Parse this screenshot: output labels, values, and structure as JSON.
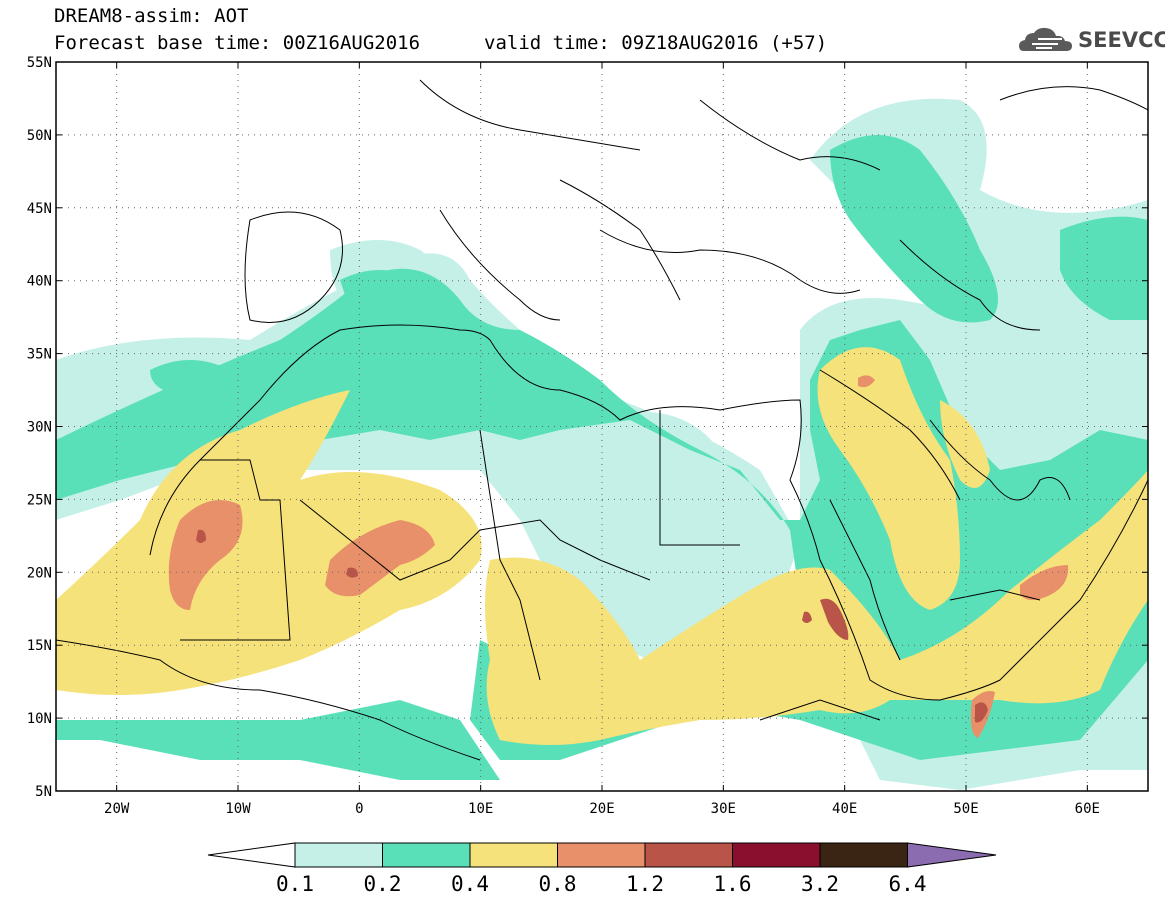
{
  "header": {
    "title_line1": "DREAM8-assim: AOT",
    "title_line2": "Forecast base time: 00Z16AUG2016",
    "valid_time": "valid time: 09Z18AUG2016 (+57)",
    "logo_text": "SEEVCCC"
  },
  "map": {
    "lon_ticks": [
      {
        "lon": -20,
        "label": "20W"
      },
      {
        "lon": -10,
        "label": "10W"
      },
      {
        "lon": 0,
        "label": "0"
      },
      {
        "lon": 10,
        "label": "10E"
      },
      {
        "lon": 20,
        "label": "20E"
      },
      {
        "lon": 30,
        "label": "30E"
      },
      {
        "lon": 40,
        "label": "40E"
      },
      {
        "lon": 50,
        "label": "50E"
      },
      {
        "lon": 60,
        "label": "60E"
      }
    ],
    "lat_ticks": [
      {
        "lat": 55,
        "label": "55N"
      },
      {
        "lat": 50,
        "label": "50N"
      },
      {
        "lat": 45,
        "label": "45N"
      },
      {
        "lat": 40,
        "label": "40N"
      },
      {
        "lat": 35,
        "label": "35N"
      },
      {
        "lat": 30,
        "label": "30N"
      },
      {
        "lat": 25,
        "label": "25N"
      },
      {
        "lat": 20,
        "label": "20N"
      },
      {
        "lat": 15,
        "label": "15N"
      },
      {
        "lat": 10,
        "label": "10N"
      },
      {
        "lat": 5,
        "label": "5N"
      }
    ],
    "lon_range": [
      -25,
      65
    ],
    "lat_range": [
      5,
      55
    ],
    "grid": "dotted"
  },
  "colorbar": {
    "labels": [
      "0.1",
      "0.2",
      "0.4",
      "0.8",
      "1.2",
      "1.6",
      "3.2",
      "6.4"
    ],
    "colors": [
      "#ffffff",
      "#c5f0e8",
      "#5ae0b8",
      "#f6e27a",
      "#e8906a",
      "#b85548",
      "#8a0f2e",
      "#3a2414",
      "#8c6cb0"
    ]
  }
}
